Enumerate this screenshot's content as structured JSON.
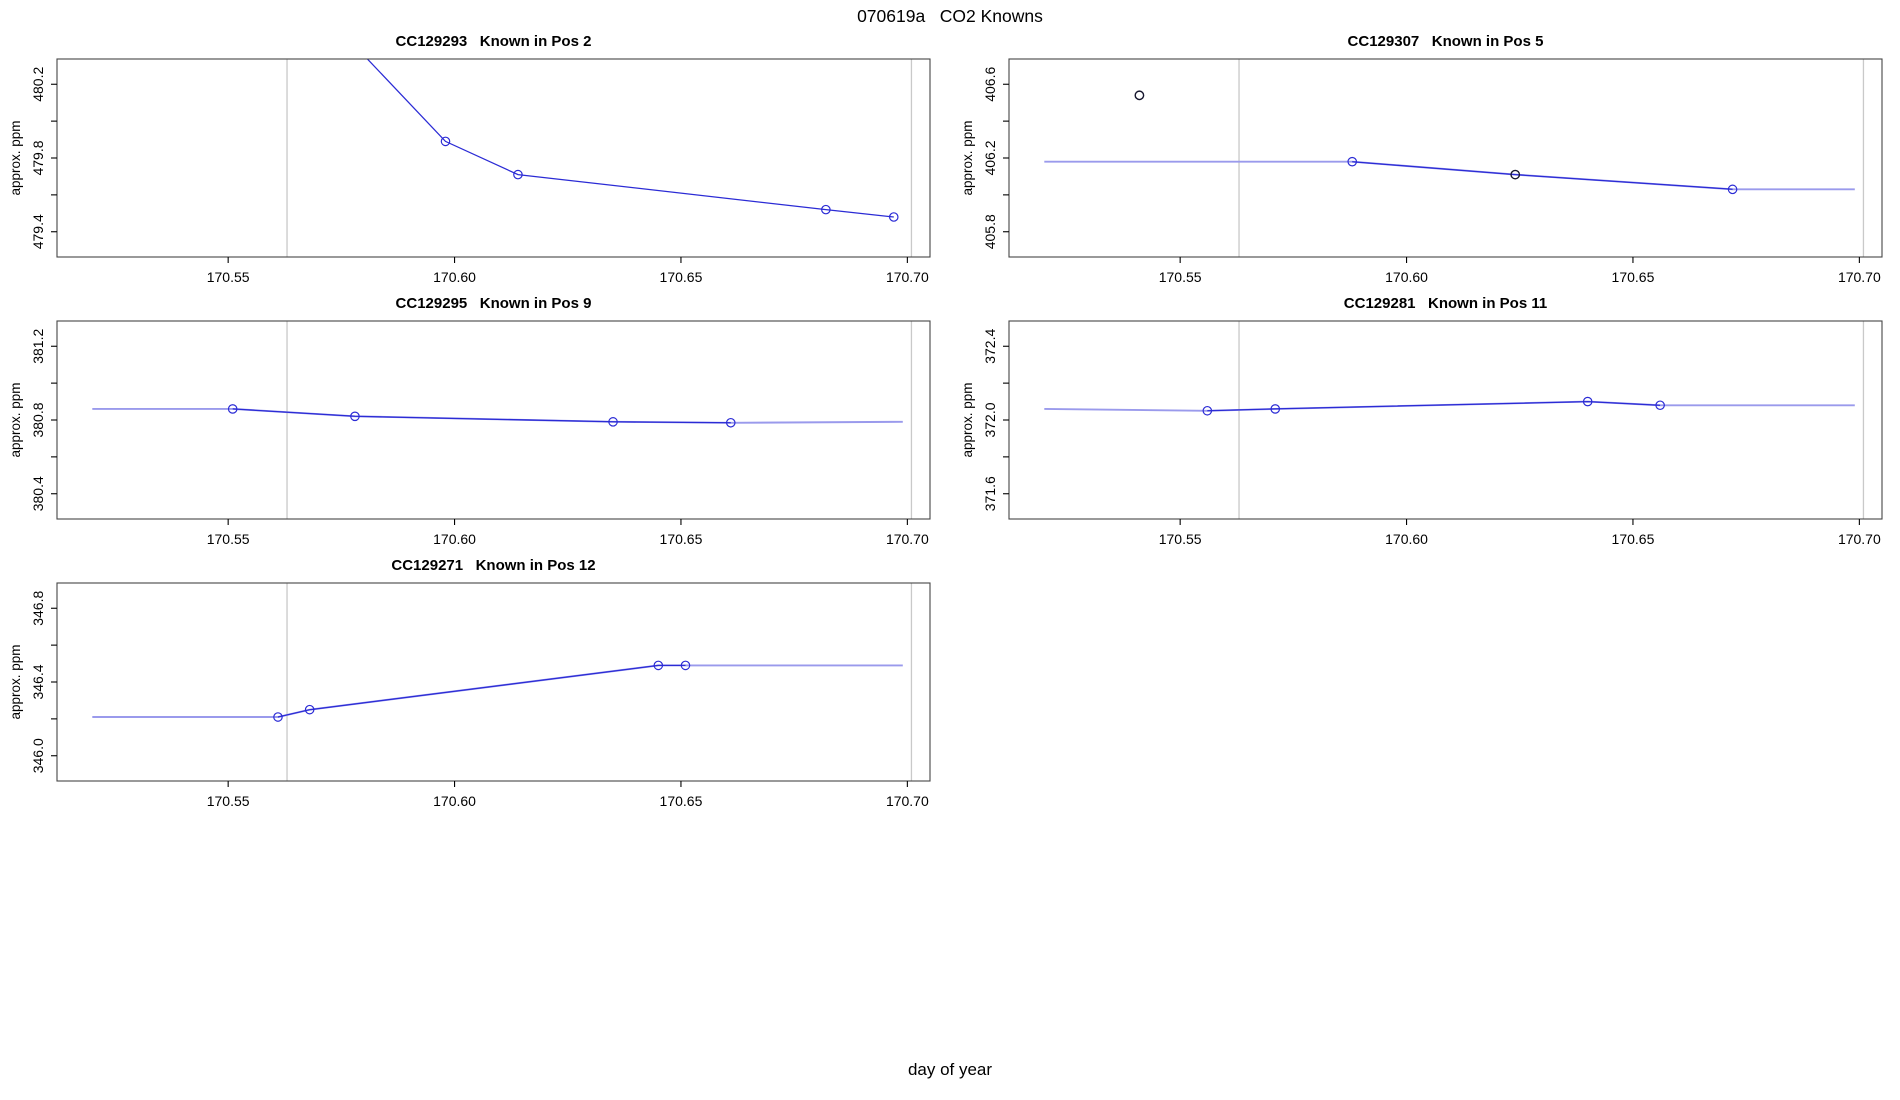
{
  "page": {
    "title": "070619a   CO2 Knowns",
    "xlabel": "day of year"
  },
  "colors": {
    "line": "#2b2bd5",
    "smooth": "#9a9aec",
    "point": "#2b2bd5",
    "dark_point": "#16162e",
    "guide": "#c9c9c9",
    "frame": "#454545",
    "text": "#000000"
  },
  "axis": {
    "xlabel": "day of year",
    "ylabel": "approx. ppm",
    "xlim": [
      170.5122,
      170.705
    ],
    "x_tick_values": [
      170.55,
      170.6,
      170.65,
      170.7
    ],
    "x_tick_labels": [
      "170.55",
      "170.60",
      "170.65",
      "170.70"
    ],
    "guide_x": [
      170.563,
      170.7009
    ],
    "grid": false
  },
  "chart_data": [
    {
      "type": "line",
      "title": "CC129293   Known in Pos 2",
      "code": "CC129293",
      "position_label": "Known in Pos 2",
      "col": 0,
      "row": 0,
      "ylabel": "approx. ppm",
      "ylim": [
        479.263,
        480.337
      ],
      "y_ticks": [
        {
          "v": 480.2,
          "label": "480.2"
        },
        {
          "v": 480.0,
          "label": ""
        },
        {
          "v": 479.8,
          "label": "479.8"
        },
        {
          "v": 479.6,
          "label": ""
        },
        {
          "v": 479.4,
          "label": "479.4"
        }
      ],
      "line": [
        [
          170.576,
          480.46
        ],
        [
          170.598,
          479.89
        ],
        [
          170.614,
          479.71
        ],
        [
          170.682,
          479.52
        ],
        [
          170.697,
          479.48
        ]
      ],
      "solid_range": [
        0,
        4
      ],
      "smooth": false,
      "points": [
        [
          170.598,
          479.89
        ],
        [
          170.614,
          479.71
        ],
        [
          170.682,
          479.52
        ],
        [
          170.697,
          479.48
        ]
      ],
      "dark_points": []
    },
    {
      "type": "line",
      "title": "CC129307   Known in Pos 5",
      "code": "CC129307",
      "position_label": "Known in Pos 5",
      "col": 1,
      "row": 0,
      "ylabel": "approx. ppm",
      "ylim": [
        405.663,
        406.737
      ],
      "y_ticks": [
        {
          "v": 406.6,
          "label": "406.6"
        },
        {
          "v": 406.4,
          "label": ""
        },
        {
          "v": 406.2,
          "label": "406.2"
        },
        {
          "v": 406.0,
          "label": ""
        },
        {
          "v": 405.8,
          "label": "405.8"
        }
      ],
      "line": [
        [
          170.52,
          406.18
        ],
        [
          170.588,
          406.18
        ],
        [
          170.624,
          406.11
        ],
        [
          170.672,
          406.03
        ],
        [
          170.699,
          406.03
        ]
      ],
      "solid_range": [
        1,
        3
      ],
      "smooth": true,
      "points": [
        [
          170.588,
          406.18
        ],
        [
          170.672,
          406.03
        ]
      ],
      "dark_points": [
        [
          170.541,
          406.54
        ],
        [
          170.624,
          406.11
        ]
      ]
    },
    {
      "type": "line",
      "title": "CC129295   Known in Pos 9",
      "code": "CC129295",
      "position_label": "Known in Pos 9",
      "col": 0,
      "row": 1,
      "ylabel": "approx. ppm",
      "ylim": [
        380.263,
        381.337
      ],
      "y_ticks": [
        {
          "v": 381.2,
          "label": "381.2"
        },
        {
          "v": 381.0,
          "label": ""
        },
        {
          "v": 380.8,
          "label": "380.8"
        },
        {
          "v": 380.6,
          "label": ""
        },
        {
          "v": 380.4,
          "label": "380.4"
        }
      ],
      "line": [
        [
          170.52,
          380.86
        ],
        [
          170.551,
          380.86
        ],
        [
          170.578,
          380.82
        ],
        [
          170.635,
          380.79
        ],
        [
          170.661,
          380.785
        ],
        [
          170.699,
          380.79
        ]
      ],
      "solid_range": [
        1,
        4
      ],
      "smooth": true,
      "points": [
        [
          170.551,
          380.86
        ],
        [
          170.578,
          380.82
        ],
        [
          170.635,
          380.79
        ],
        [
          170.661,
          380.785
        ]
      ],
      "dark_points": []
    },
    {
      "type": "line",
      "title": "CC129281   Known in Pos 11",
      "code": "CC129281",
      "position_label": "Known in Pos 11",
      "col": 1,
      "row": 1,
      "ylabel": "approx. ppm",
      "ylim": [
        371.463,
        372.537
      ],
      "y_ticks": [
        {
          "v": 372.4,
          "label": "372.4"
        },
        {
          "v": 372.2,
          "label": ""
        },
        {
          "v": 372.0,
          "label": "372.0"
        },
        {
          "v": 371.8,
          "label": ""
        },
        {
          "v": 371.6,
          "label": "371.6"
        }
      ],
      "line": [
        [
          170.52,
          372.06
        ],
        [
          170.556,
          372.05
        ],
        [
          170.571,
          372.06
        ],
        [
          170.64,
          372.1
        ],
        [
          170.656,
          372.08
        ],
        [
          170.699,
          372.08
        ]
      ],
      "solid_range": [
        1,
        4
      ],
      "smooth": true,
      "points": [
        [
          170.556,
          372.05
        ],
        [
          170.571,
          372.06
        ],
        [
          170.64,
          372.1
        ],
        [
          170.656,
          372.08
        ]
      ],
      "dark_points": []
    },
    {
      "type": "line",
      "title": "CC129271   Known in Pos 12",
      "code": "CC129271",
      "position_label": "Known in Pos 12",
      "col": 0,
      "row": 2,
      "ylabel": "approx. ppm",
      "ylim": [
        345.863,
        346.937
      ],
      "y_ticks": [
        {
          "v": 346.8,
          "label": "346.8"
        },
        {
          "v": 346.6,
          "label": ""
        },
        {
          "v": 346.4,
          "label": "346.4"
        },
        {
          "v": 346.2,
          "label": ""
        },
        {
          "v": 346.0,
          "label": "346.0"
        }
      ],
      "line": [
        [
          170.52,
          346.21
        ],
        [
          170.561,
          346.21
        ],
        [
          170.568,
          346.25
        ],
        [
          170.645,
          346.49
        ],
        [
          170.651,
          346.49
        ],
        [
          170.699,
          346.49
        ]
      ],
      "solid_range": [
        1,
        4
      ],
      "smooth": true,
      "points": [
        [
          170.561,
          346.21
        ],
        [
          170.568,
          346.25
        ],
        [
          170.645,
          346.49
        ],
        [
          170.651,
          346.49
        ]
      ],
      "dark_points": []
    }
  ]
}
